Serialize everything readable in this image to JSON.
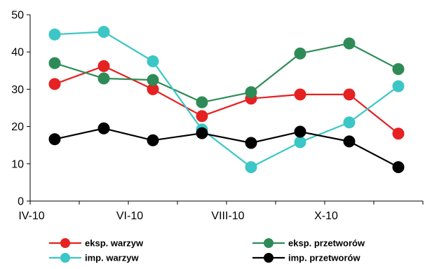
{
  "chart_data": {
    "type": "line",
    "title": "",
    "xlabel": "",
    "ylabel": "",
    "ylim": [
      0,
      50
    ],
    "yticks": [
      0,
      10,
      20,
      30,
      40,
      50
    ],
    "x": [
      "IV-10",
      "V-10",
      "VI-10",
      "VII-10",
      "VIII-10",
      "IX-10",
      "X-10",
      "XI-10"
    ],
    "x_tick_labels": [
      "IV-10",
      "",
      "VI-10",
      "",
      "VIII-10",
      "",
      "X-10",
      ""
    ],
    "grid": false,
    "legend_position": "bottom",
    "series": [
      {
        "name": "eksp. warzyw",
        "color": "#e52121",
        "values": [
          31.4,
          36.2,
          30.0,
          22.8,
          27.5,
          28.6,
          28.6,
          18.1
        ]
      },
      {
        "name": "eksp. przetworów",
        "color": "#2e8b57",
        "values": [
          37.0,
          32.9,
          32.5,
          26.5,
          29.2,
          39.6,
          42.3,
          35.4
        ]
      },
      {
        "name": "imp. warzyw",
        "color": "#3cc6c6",
        "values": [
          44.7,
          45.4,
          37.5,
          19.2,
          9.1,
          15.8,
          21.1,
          30.8
        ]
      },
      {
        "name": "imp. przetworów",
        "color": "#000000",
        "values": [
          16.6,
          19.5,
          16.3,
          18.2,
          15.6,
          18.6,
          16.0,
          9.1
        ]
      }
    ]
  }
}
